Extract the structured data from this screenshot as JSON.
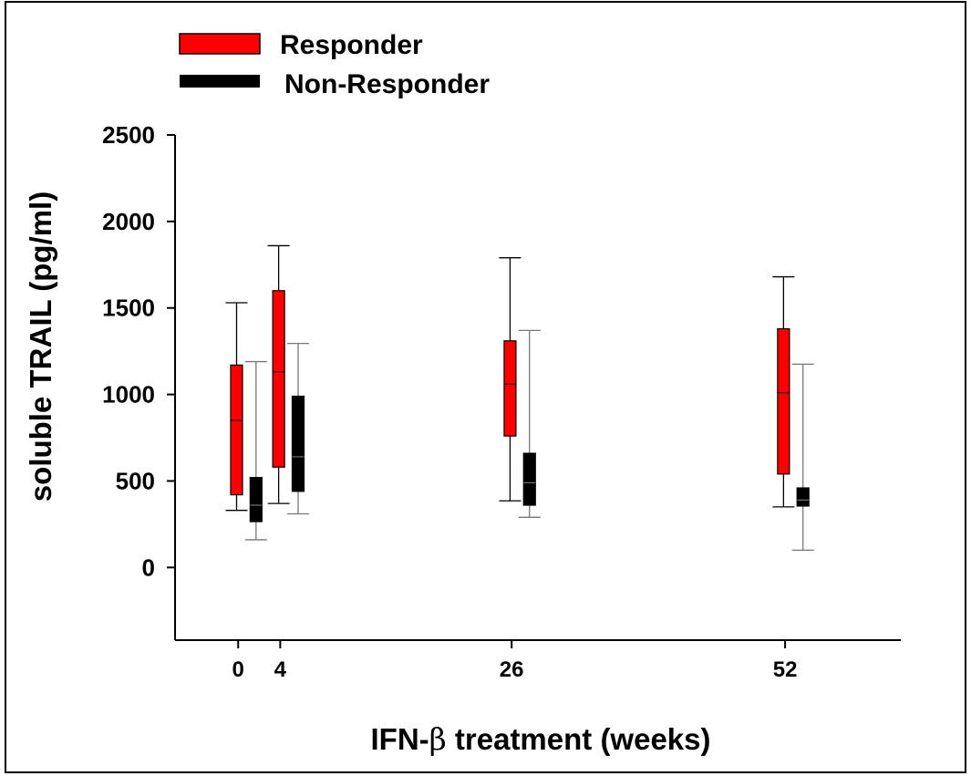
{
  "chart_data": {
    "type": "box",
    "xlabel_prefix": "IFN-",
    "xlabel_symbol": "β",
    "xlabel_suffix": " treatment (weeks)",
    "ylabel": "soluble TRAIL (pg/ml)",
    "ylim": [
      -420,
      2500
    ],
    "yticks": [
      0,
      500,
      1000,
      1500,
      2000,
      2500
    ],
    "yticklabels": [
      "0",
      "500",
      "1000",
      "1500",
      "2000",
      "2500"
    ],
    "xlim": [
      -6,
      63
    ],
    "xticks": [
      0,
      4,
      26,
      52
    ],
    "xticklabels": [
      "0",
      "4",
      "26",
      "52"
    ],
    "legend_position": "top-left",
    "series": [
      {
        "name": "Responder",
        "color": "#ff0000",
        "offset": -0.15,
        "boxes": [
          {
            "week": 0,
            "min": 330,
            "q1": 420,
            "median": 850,
            "q3": 1170,
            "max": 1530
          },
          {
            "week": 4,
            "min": 370,
            "q1": 580,
            "median": 1130,
            "q3": 1600,
            "max": 1860
          },
          {
            "week": 26,
            "min": 385,
            "q1": 760,
            "median": 1060,
            "q3": 1310,
            "max": 1790
          },
          {
            "week": 52,
            "min": 350,
            "q1": 540,
            "median": 1010,
            "q3": 1380,
            "max": 1680
          }
        ]
      },
      {
        "name": "Non-Responder",
        "color": "#000000",
        "offset": 1.7,
        "boxes": [
          {
            "week": 0,
            "min": 160,
            "q1": 265,
            "median": 360,
            "q3": 520,
            "max": 1190
          },
          {
            "week": 4,
            "min": 310,
            "q1": 440,
            "median": 640,
            "q3": 990,
            "max": 1295
          },
          {
            "week": 26,
            "min": 290,
            "q1": 360,
            "median": 490,
            "q3": 660,
            "max": 1370
          },
          {
            "week": 52,
            "min": 100,
            "q1": 355,
            "median": 390,
            "q3": 460,
            "max": 1175
          }
        ]
      }
    ]
  }
}
